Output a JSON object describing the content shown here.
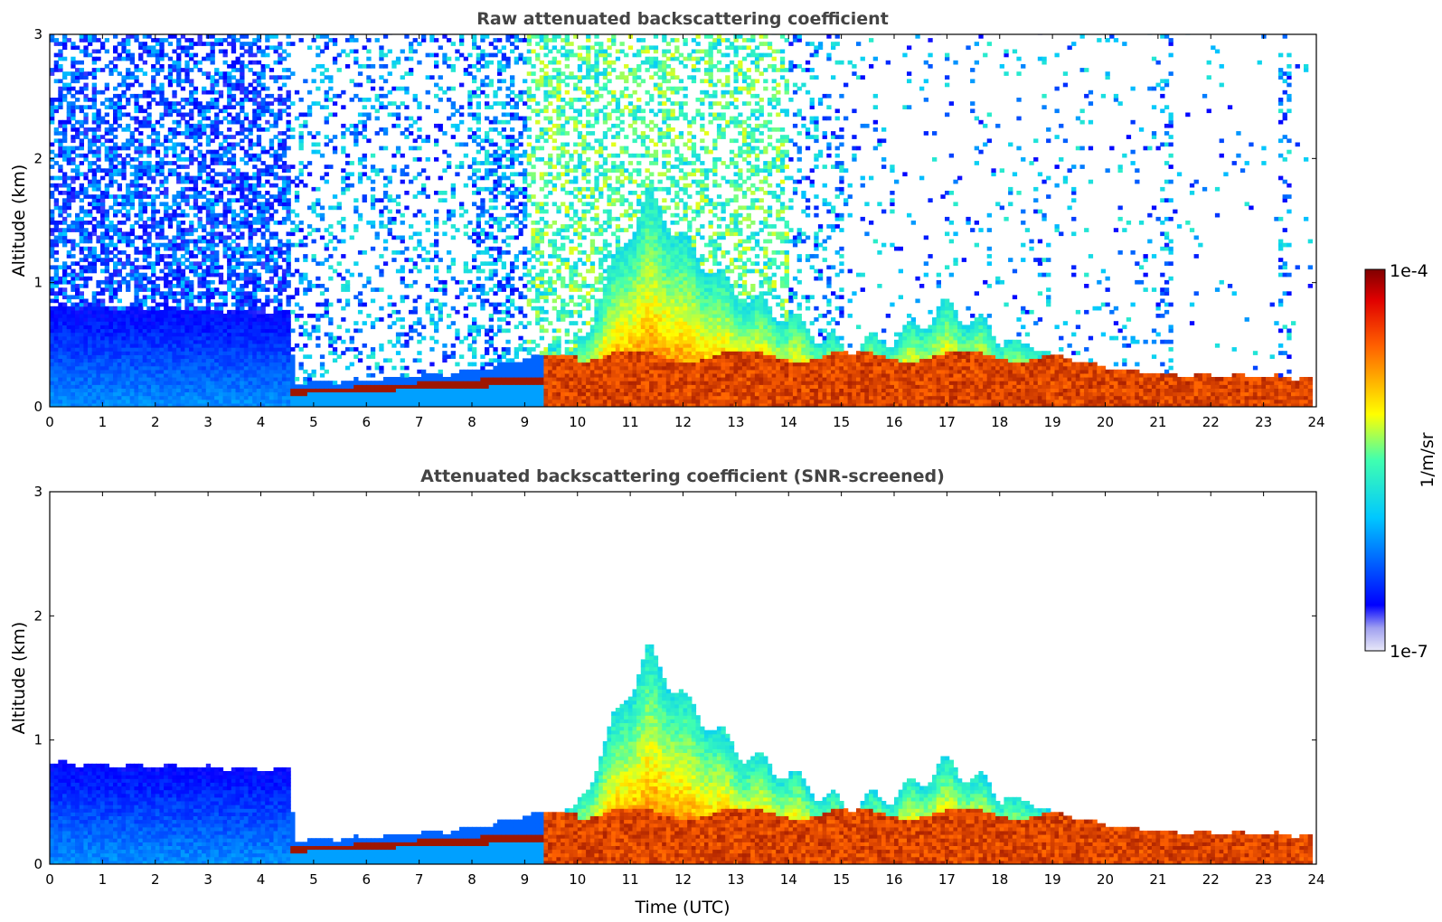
{
  "chart_data": [
    {
      "type": "heatmap",
      "title": "Raw attenuated backscattering coefficient",
      "xlabel": "",
      "ylabel": "Altitude (km)",
      "xlim": [
        0,
        24
      ],
      "ylim": [
        0,
        3
      ],
      "x_ticks": [
        "0",
        "1",
        "2",
        "3",
        "4",
        "5",
        "6",
        "7",
        "8",
        "9",
        "10",
        "11",
        "12",
        "13",
        "14",
        "15",
        "16",
        "17",
        "18",
        "19",
        "20",
        "21",
        "22",
        "23",
        "24"
      ],
      "y_ticks": [
        "0",
        "1",
        "2",
        "3"
      ],
      "screened": false
    },
    {
      "type": "heatmap",
      "title": "Attenuated backscattering coefficient (SNR-screened)",
      "xlabel": "Time (UTC)",
      "ylabel": "Altitude (km)",
      "xlim": [
        0,
        24
      ],
      "ylim": [
        0,
        3
      ],
      "x_ticks": [
        "0",
        "1",
        "2",
        "3",
        "4",
        "5",
        "6",
        "7",
        "8",
        "9",
        "10",
        "11",
        "12",
        "13",
        "14",
        "15",
        "16",
        "17",
        "18",
        "19",
        "20",
        "21",
        "22",
        "23",
        "24"
      ],
      "y_ticks": [
        "0",
        "1",
        "2",
        "3"
      ],
      "screened": true
    }
  ],
  "colorbar": {
    "label": "1/m/sr",
    "max_label": "1e-4",
    "min_label": "1e-7",
    "colormap": "jet",
    "log_scale": true,
    "colors": [
      "#e8e8f8",
      "#0000ff",
      "#00c8ff",
      "#40ffb0",
      "#ffff00",
      "#ff6000",
      "#800000"
    ]
  },
  "profile": {
    "boundary_layer_top_km": [
      {
        "t": 0,
        "h": 0.8
      },
      {
        "t": 4.5,
        "h": 0.75
      },
      {
        "t": 4.6,
        "h": 0.18
      },
      {
        "t": 6,
        "h": 0.2
      },
      {
        "t": 8,
        "h": 0.27
      },
      {
        "t": 9,
        "h": 0.38
      },
      {
        "t": 10,
        "h": 0.45
      },
      {
        "t": 10.5,
        "h": 1.0
      },
      {
        "t": 11.3,
        "h": 1.7
      },
      {
        "t": 12,
        "h": 1.3
      },
      {
        "t": 13,
        "h": 0.9
      },
      {
        "t": 14,
        "h": 0.7
      },
      {
        "t": 15,
        "h": 0.45
      },
      {
        "t": 16,
        "h": 0.55
      },
      {
        "t": 17,
        "h": 0.8
      },
      {
        "t": 18,
        "h": 0.55
      },
      {
        "t": 19,
        "h": 0.4
      },
      {
        "t": 20,
        "h": 0.3
      },
      {
        "t": 21,
        "h": 0.25
      },
      {
        "t": 23.8,
        "h": 0.22
      }
    ]
  }
}
